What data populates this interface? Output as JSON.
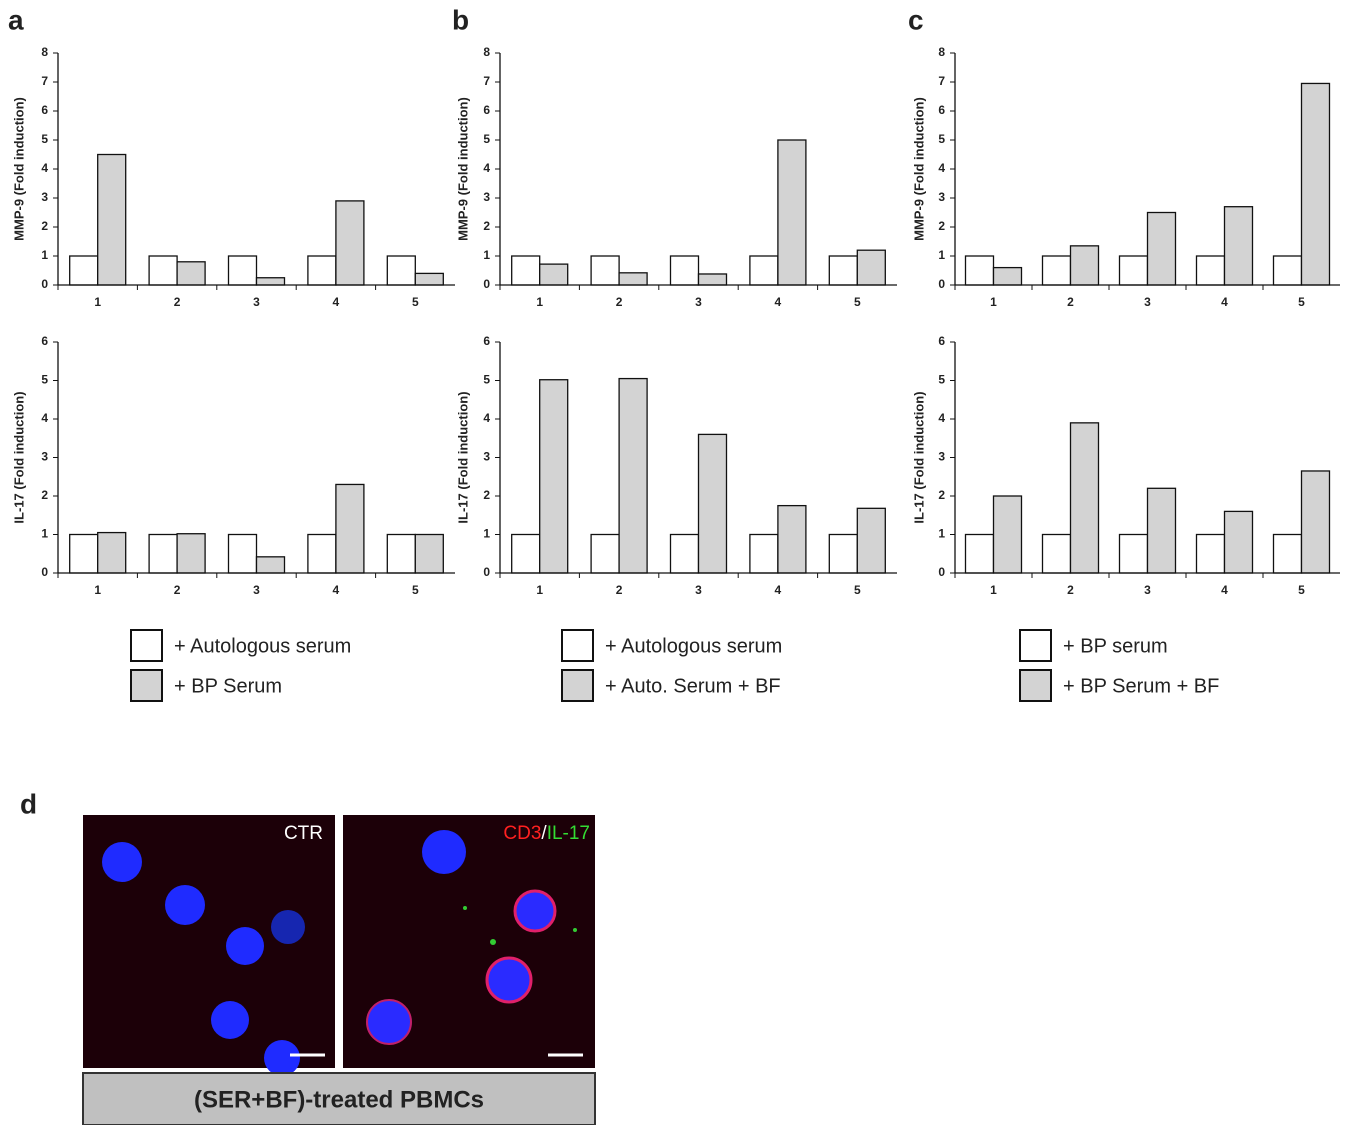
{
  "panel_labels": [
    "a",
    "b",
    "c",
    "d"
  ],
  "chart_data": [
    {
      "type": "bar",
      "ylabel": "MMP-9 (Fold induction)",
      "categories": [
        "1",
        "2",
        "3",
        "4",
        "5"
      ],
      "ylim": [
        0,
        8
      ],
      "yticks": [
        0,
        1,
        2,
        3,
        4,
        5,
        6,
        7,
        8
      ],
      "series": [
        {
          "color": "#ffffff",
          "values": [
            1,
            1,
            1,
            1,
            1
          ]
        },
        {
          "color": "#d3d3d3",
          "values": [
            4.5,
            0.8,
            0.25,
            2.9,
            0.4
          ]
        }
      ]
    },
    {
      "type": "bar",
      "ylabel": "IL-17 (Fold induction)",
      "categories": [
        "1",
        "2",
        "3",
        "4",
        "5"
      ],
      "ylim": [
        0,
        6
      ],
      "yticks": [
        0,
        1,
        2,
        3,
        4,
        5,
        6
      ],
      "series": [
        {
          "name": "+ Autologous serum",
          "color": "#ffffff",
          "values": [
            1,
            1,
            1,
            1,
            1
          ]
        },
        {
          "name": "+ BP Serum",
          "color": "#d3d3d3",
          "values": [
            1.05,
            1.02,
            0.42,
            2.3,
            1.0
          ]
        }
      ]
    },
    {
      "type": "bar",
      "ylabel": "MMP-9 (Fold induction)",
      "categories": [
        "1",
        "2",
        "3",
        "4",
        "5"
      ],
      "ylim": [
        0,
        8
      ],
      "yticks": [
        0,
        1,
        2,
        3,
        4,
        5,
        6,
        7,
        8
      ],
      "series": [
        {
          "color": "#ffffff",
          "values": [
            1,
            1,
            1,
            1,
            1
          ]
        },
        {
          "color": "#d3d3d3",
          "values": [
            0.72,
            0.42,
            0.38,
            5.0,
            1.2
          ]
        }
      ]
    },
    {
      "type": "bar",
      "ylabel": "IL-17 (Fold induction)",
      "categories": [
        "1",
        "2",
        "3",
        "4",
        "5"
      ],
      "ylim": [
        0,
        6
      ],
      "yticks": [
        0,
        1,
        2,
        3,
        4,
        5,
        6
      ],
      "series": [
        {
          "name": "+ Autologous serum",
          "color": "#ffffff",
          "values": [
            1,
            1,
            1,
            1,
            1
          ]
        },
        {
          "name": "+ Auto. Serum + BF",
          "color": "#d3d3d3",
          "values": [
            5.02,
            5.05,
            3.6,
            1.75,
            1.68
          ]
        }
      ]
    },
    {
      "type": "bar",
      "ylabel": "MMP-9 (Fold induction)",
      "categories": [
        "1",
        "2",
        "3",
        "4",
        "5"
      ],
      "ylim": [
        0,
        8
      ],
      "yticks": [
        0,
        1,
        2,
        3,
        4,
        5,
        6,
        7,
        8
      ],
      "series": [
        {
          "color": "#ffffff",
          "values": [
            1,
            1,
            1,
            1,
            1
          ]
        },
        {
          "color": "#d3d3d3",
          "values": [
            0.6,
            1.35,
            2.5,
            2.7,
            6.95
          ]
        }
      ]
    },
    {
      "type": "bar",
      "ylabel": "IL-17 (Fold induction)",
      "categories": [
        "1",
        "2",
        "3",
        "4",
        "5"
      ],
      "ylim": [
        0,
        6
      ],
      "yticks": [
        0,
        1,
        2,
        3,
        4,
        5,
        6
      ],
      "series": [
        {
          "name": "+ BP serum",
          "color": "#ffffff",
          "values": [
            1,
            1,
            1,
            1,
            1
          ]
        },
        {
          "name": "+ BP Serum + BF",
          "color": "#d3d3d3",
          "values": [
            2.0,
            3.9,
            2.2,
            1.6,
            2.65
          ]
        }
      ]
    }
  ],
  "micrograph": {
    "left_label": "CTR",
    "right_label_red": "CD3",
    "right_label_sep": "/",
    "right_label_green": "IL-17",
    "caption": "(SER+BF)-treated PBMCs"
  }
}
